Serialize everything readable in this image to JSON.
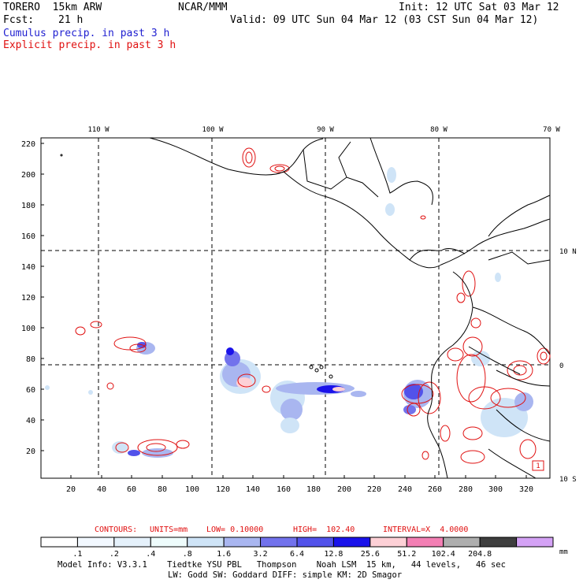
{
  "header": {
    "model": "TORERO  15km ARW",
    "source": "NCAR/MMM",
    "init": "Init: 12 UTC Sat 03 Mar 12",
    "fcst_label": "Fcst:",
    "fcst_hours": "21 h",
    "valid": "Valid: 09 UTC Sun 04 Mar 12 (03 CST Sun 04 Mar 12)",
    "cumulus_label": "Cumulus precip. in past 3 h",
    "explicit_label": "Explicit precip. in past 3 h"
  },
  "map": {
    "lon_labels": [
      "110 W",
      "100 W",
      "90 W",
      "80 W",
      "70 W"
    ],
    "lat_labels": [
      "10 N",
      "0",
      "10 S"
    ],
    "x_ticks": [
      "20",
      "40",
      "60",
      "80",
      "100",
      "120",
      "140",
      "160",
      "180",
      "200",
      "220",
      "240",
      "260",
      "280",
      "300",
      "320"
    ],
    "y_ticks": [
      "20",
      "40",
      "60",
      "80",
      "100",
      "120",
      "140",
      "160",
      "180",
      "200",
      "220"
    ],
    "box_label": "1"
  },
  "contours": {
    "label": "CONTOURS:",
    "units": "UNITS=mm",
    "low": "LOW= 0.10000",
    "high": "HIGH=  102.40",
    "interval": "INTERVAL=X  4.0000"
  },
  "colorbar": {
    "labels": [
      ".1",
      ".2",
      ".4",
      ".8",
      "1.6",
      "3.2",
      "6.4",
      "12.8",
      "25.6",
      "51.2",
      "102.4",
      "204.8"
    ],
    "unit": "mm",
    "colors": [
      "#ffffff",
      "#f2f8ff",
      "#e5f1fb",
      "#eefcfc",
      "#cfe4f7",
      "#a9b6f0",
      "#7272ec",
      "#5252ea",
      "#1a12ea",
      "#fdd0d6",
      "#f37fb4",
      "#aeaeae",
      "#3e3e3e",
      "#d4a2f5"
    ]
  },
  "footer": {
    "line1": "Model Info: V3.3.1    Tiedtke YSU PBL   Thompson    Noah LSM  15 km,   44 levels,   46 sec",
    "line2": "LW: Godd SW: Goddard DIFF: simple KM: 2D Smagor"
  }
}
